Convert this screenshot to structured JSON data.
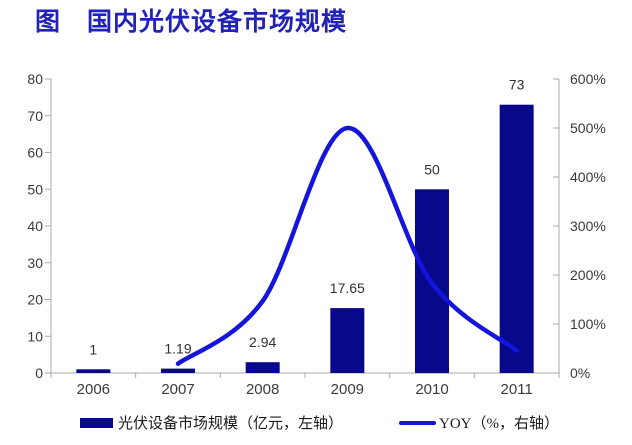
{
  "title": "图　国内光伏设备市场规模",
  "colors": {
    "bar": "#08088B",
    "line": "#1414DC",
    "title": "#2222B8",
    "axis": "#A9A9A9",
    "tick_label": "#3A3A3A",
    "data_label": "#303030"
  },
  "chart_data": {
    "type": "bar",
    "categories": [
      "2006",
      "2007",
      "2008",
      "2009",
      "2010",
      "2011"
    ],
    "series": [
      {
        "name": "光伏设备市场规模（亿元，左轴）",
        "type": "bar",
        "axis": "left",
        "values": [
          1,
          1.19,
          2.94,
          17.65,
          50,
          73
        ],
        "labels": [
          "1",
          "1.19",
          "2.94",
          "17.65",
          "50",
          "73"
        ]
      },
      {
        "name": "YOY（%，右轴）",
        "type": "line",
        "axis": "right",
        "values": [
          null,
          19,
          147,
          500,
          183,
          46
        ]
      }
    ],
    "title": "图　国内光伏设备市场规模",
    "xlabel": "",
    "ylabel_left": "亿元",
    "ylabel_right": "%",
    "left_axis": {
      "min": 0,
      "max": 80,
      "ticks": [
        "0",
        "10",
        "20",
        "30",
        "40",
        "50",
        "60",
        "70",
        "80"
      ]
    },
    "right_axis": {
      "min": 0,
      "max": 600,
      "ticks": [
        "0%",
        "100%",
        "200%",
        "300%",
        "400%",
        "500%",
        "600%"
      ]
    },
    "grid": false,
    "legend_position": "bottom"
  },
  "legend": {
    "bar_label": "光伏设备市场规模（亿元，左轴）",
    "line_label": "YOY（%，右轴）"
  }
}
